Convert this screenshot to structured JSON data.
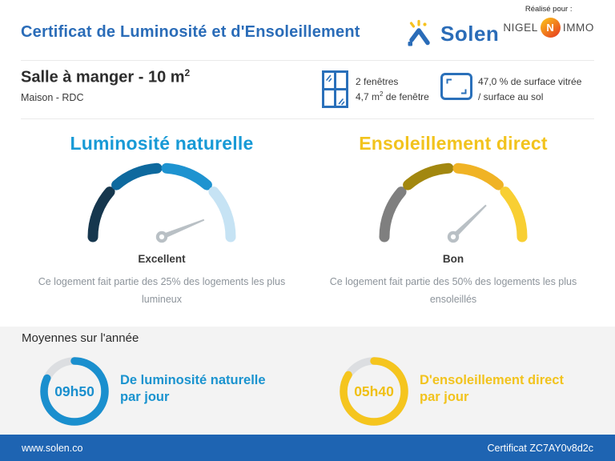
{
  "header": {
    "title": "Certificat de Luminosité et d'Ensoleillement",
    "realise_pour": "Réalisé pour :",
    "solen_wordmark": "Solen",
    "partner": {
      "name_left": "NIGEL",
      "monogram": "N",
      "name_right": "IMMO"
    }
  },
  "room": {
    "title_main": "Salle à manger - 10 m",
    "title_sup": "2",
    "subtitle": "Maison - RDC",
    "windows": {
      "line1": "2 fenêtres",
      "line2_value": "4,7 m",
      "line2_sup": "2",
      "line2_rest": " de fenêtre"
    },
    "glazing": {
      "line1": "47,0 % de surface vitrée",
      "line2": "/ surface au sol"
    }
  },
  "averages": {
    "heading": "Moyennes sur l'année",
    "luminosity": {
      "value": "09h50",
      "label_line1": "De luminosité naturelle",
      "label_line2": "par jour"
    },
    "sunshine": {
      "value": "05h40",
      "label_line1": "D'ensoleillement direct",
      "label_line2": "par jour"
    }
  },
  "footer": {
    "left": "www.solen.co",
    "right": "Certificat ZC7AY0v8d2c"
  },
  "colors": {
    "primary_blue": "#2a6cb8",
    "luminosity_blue": "#1a8fce",
    "sunshine_yellow": "#f5c51e",
    "footer_blue": "#1e64b2",
    "section_bg": "#f3f3f3"
  },
  "chart_data": [
    {
      "type": "gauge",
      "title": "Luminosité naturelle",
      "rating": "Excellent",
      "description": "Ce logement fait partie des 25% des logements les plus lumineux",
      "top_percent": 25,
      "bands": 4,
      "segment_colors": [
        "#16374e",
        "#0e699e",
        "#1e93d0",
        "#c6e3f4"
      ],
      "needle_angle_deg": 22
    },
    {
      "type": "gauge",
      "title": "Ensoleillement direct",
      "rating": "Bon",
      "description": "Ce logement fait partie des 50% des logements les plus ensoleillés",
      "top_percent": 50,
      "bands": 4,
      "segment_colors": [
        "#7f7f7f",
        "#a2870f",
        "#f0b325",
        "#f8cf33"
      ],
      "needle_angle_deg": 44
    },
    {
      "type": "donut",
      "value_label": "09h50",
      "label": "De luminosité naturelle par jour",
      "fraction_filled": 0.82,
      "color": "#1a8fce"
    },
    {
      "type": "donut",
      "value_label": "05h40",
      "label": "D'ensoleillement direct par jour",
      "fraction_filled": 0.84,
      "color": "#f5c51e"
    }
  ]
}
